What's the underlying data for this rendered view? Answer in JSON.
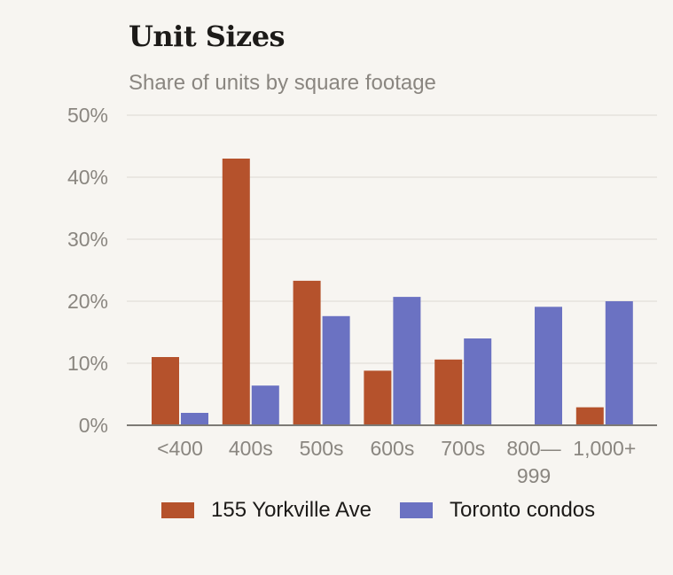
{
  "chart_data": {
    "type": "bar",
    "title": "Unit Sizes",
    "subtitle": "Share of units by square footage",
    "xlabel": "",
    "ylabel": "",
    "categories": [
      "<400",
      "400s",
      "500s",
      "600s",
      "700s",
      "800—999",
      "1,000+"
    ],
    "series": [
      {
        "name": "155 Yorkville Ave",
        "color": "#b5522c",
        "values": [
          11,
          43,
          23.3,
          8.8,
          10.6,
          0,
          2.9
        ]
      },
      {
        "name": "Toronto condos",
        "color": "#6b72c2",
        "values": [
          2,
          6.4,
          17.6,
          20.7,
          14,
          19.1,
          20
        ]
      }
    ],
    "ylim": [
      0,
      50
    ],
    "yticks": [
      0,
      10,
      20,
      30,
      40,
      50
    ],
    "ytick_labels": [
      "0%",
      "10%",
      "20%",
      "30%",
      "40%",
      "50%"
    ],
    "grid": true,
    "legend_position": "bottom"
  }
}
